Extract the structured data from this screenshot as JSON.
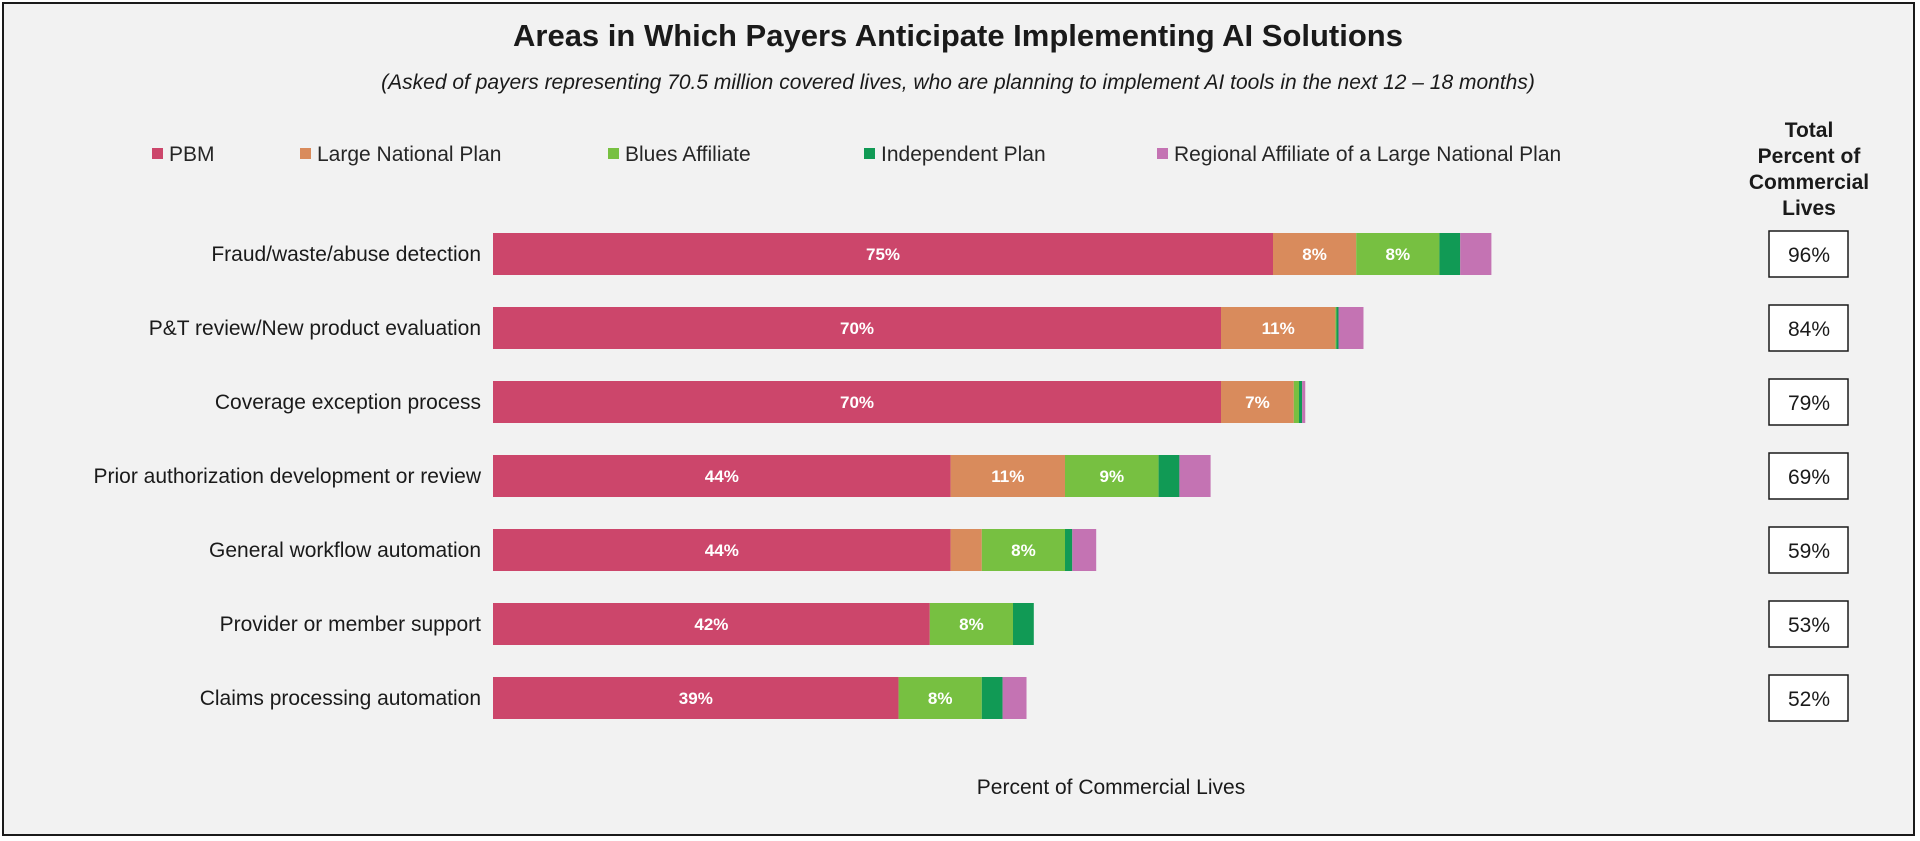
{
  "chart_data": {
    "type": "bar",
    "orientation": "horizontal",
    "stacked": true,
    "title": "Areas in Which Payers Anticipate Implementing AI Solutions",
    "subtitle": "(Asked of payers representing 70.5 million covered lives, who are planning to implement AI tools in the next 12 – 18 months)",
    "xlabel": "Percent of Commercial Lives",
    "xlim": [
      0,
      100
    ],
    "legend_position": "top",
    "categories": [
      "Fraud/waste/abuse detection",
      "P&T review/New product evaluation",
      "Coverage exception process",
      "Prior authorization development or review",
      "General workflow automation",
      "Provider or member support",
      "Claims processing automation"
    ],
    "series": [
      {
        "name": "PBM",
        "color": "#cc466b",
        "values": [
          75,
          70,
          70,
          44,
          44,
          42,
          39
        ],
        "labels": [
          "75%",
          "70%",
          "70%",
          "44%",
          "44%",
          "42%",
          "39%"
        ]
      },
      {
        "name": "Large National Plan",
        "color": "#d98b5c",
        "values": [
          8,
          11,
          7,
          11,
          3,
          0,
          0
        ],
        "labels": [
          "8%",
          "11%",
          "7%",
          "11%",
          "",
          "",
          ""
        ]
      },
      {
        "name": "Blues Affiliate",
        "color": "#77c041",
        "values": [
          8,
          0.1,
          0.5,
          9,
          8,
          8,
          8
        ],
        "labels": [
          "8%",
          "",
          "",
          "9%",
          "8%",
          "8%",
          "8%"
        ]
      },
      {
        "name": "Independent Plan",
        "color": "#119a55",
        "values": [
          2,
          0.2,
          0.3,
          2,
          0.7,
          2,
          2
        ],
        "labels": [
          "",
          "",
          "",
          "",
          "",
          "",
          ""
        ]
      },
      {
        "name": "Regional Affiliate of a Large National Plan",
        "color": "#c473b3",
        "values": [
          3,
          2.4,
          0.3,
          3,
          2.3,
          0,
          2.3
        ],
        "labels": [
          "",
          "",
          "",
          "",
          "",
          "",
          ""
        ]
      }
    ],
    "totals_header": [
      "Total",
      "Percent of",
      "Commercial",
      "Lives"
    ],
    "totals": [
      "96%",
      "84%",
      "79%",
      "69%",
      "59%",
      "53%",
      "52%"
    ]
  }
}
